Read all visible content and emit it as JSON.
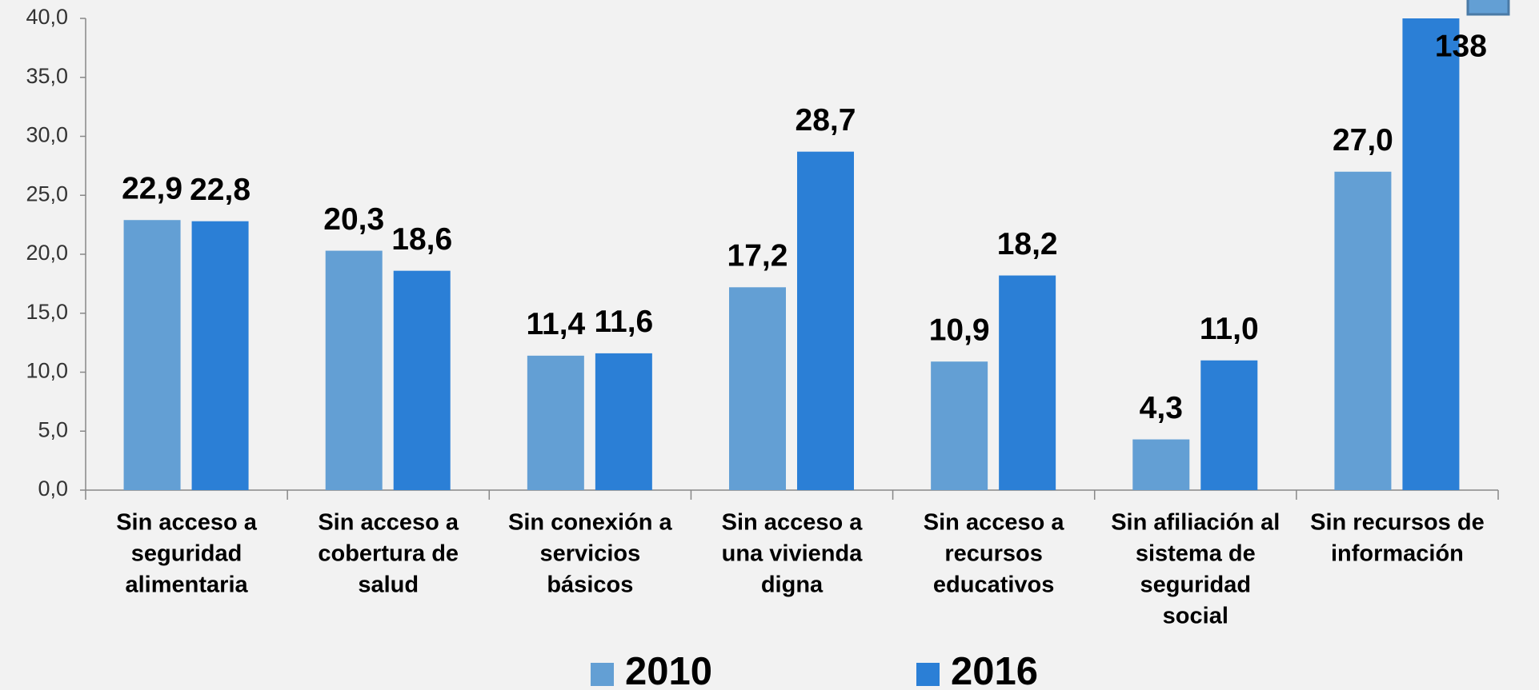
{
  "chart_data": {
    "type": "bar",
    "categories": [
      [
        "Sin acceso a",
        "seguridad",
        "alimentaria"
      ],
      [
        "Sin acceso a",
        "cobertura de",
        "salud"
      ],
      [
        "Sin conexión a",
        "servicios",
        "básicos"
      ],
      [
        "Sin acceso a",
        "una vivienda",
        "digna"
      ],
      [
        "Sin acceso a",
        "recursos",
        "educativos"
      ],
      [
        "Sin afiliación al",
        "sistema de",
        "seguridad",
        "social"
      ],
      [
        "Sin recursos de",
        "información"
      ]
    ],
    "series": [
      {
        "name": "2010",
        "color": "#639fd4",
        "values": [
          22.9,
          20.3,
          11.4,
          17.2,
          10.9,
          4.3,
          27.0
        ],
        "value_labels": [
          "22,9",
          "20,3",
          "11,4",
          "17,2",
          "10,9",
          "4,3",
          "27,0"
        ]
      },
      {
        "name": "2016",
        "color": "#2b7fd6",
        "values": [
          22.8,
          18.6,
          11.6,
          28.7,
          18.2,
          11.0,
          138
        ],
        "value_labels": [
          "22,8",
          "18,6",
          "11,6",
          "28,7",
          "18,2",
          "11,0",
          "138"
        ]
      }
    ],
    "ylim": [
      0,
      40
    ],
    "yticks": [
      {
        "value": 0,
        "label": "0,0"
      },
      {
        "value": 5,
        "label": "5,0"
      },
      {
        "value": 10,
        "label": "10,0"
      },
      {
        "value": 15,
        "label": "15,0"
      },
      {
        "value": 20,
        "label": "20,0"
      },
      {
        "value": 25,
        "label": "25,0"
      },
      {
        "value": 30,
        "label": "30,0"
      },
      {
        "value": 35,
        "label": "35,0"
      },
      {
        "value": 40,
        "label": "40,0"
      }
    ]
  }
}
